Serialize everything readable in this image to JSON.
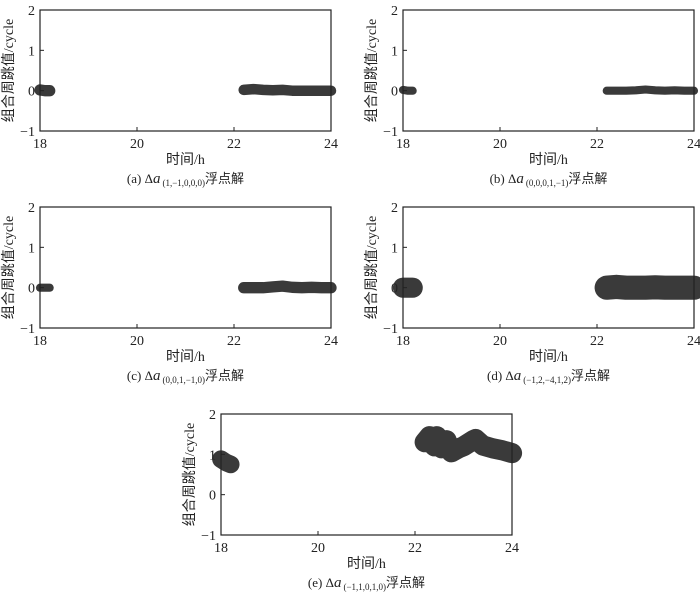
{
  "chart_data": [
    {
      "type": "scatter",
      "panel": "a",
      "title": "",
      "xlabel": "时间/h",
      "ylabel": "组合周跳值/cycle",
      "xlim": [
        18,
        24
      ],
      "ylim": [
        -1,
        2
      ],
      "xticks": [
        "18",
        "20",
        "22",
        "24"
      ],
      "yticks": [
        "−1",
        "0",
        "1",
        "2"
      ],
      "caption": {
        "prefix": "(a) Δ",
        "var": "a",
        "sub": "(1,−1,0,0,0)",
        "suffix": "浮点解"
      },
      "segments": [
        {
          "x": [
            18.0,
            18.1,
            18.2
          ],
          "y": [
            0.02,
            0.0,
            0.0
          ],
          "spread": 0.14
        },
        {
          "x": [
            22.2,
            22.4,
            22.6,
            22.8,
            23.0,
            23.2,
            23.4,
            23.6,
            23.8,
            24.0
          ],
          "y": [
            0.02,
            0.04,
            0.02,
            0.01,
            0.02,
            0.0,
            0.0,
            0.0,
            0.0,
            0.0
          ],
          "spread": 0.13
        }
      ],
      "color": "#3a3a3a"
    },
    {
      "type": "scatter",
      "panel": "b",
      "xlabel": "时间/h",
      "ylabel": "组合周跳值/cycle",
      "xlim": [
        18,
        24
      ],
      "ylim": [
        -1,
        2
      ],
      "xticks": [
        "18",
        "20",
        "22",
        "24"
      ],
      "yticks": [
        "−1",
        "0",
        "1",
        "2"
      ],
      "caption": {
        "prefix": "(b) Δ",
        "var": "a",
        "sub": "(0,0,0,1,−1)",
        "suffix": "浮点解"
      },
      "segments": [
        {
          "x": [
            18.0,
            18.1,
            18.2
          ],
          "y": [
            0.02,
            0.0,
            0.0
          ],
          "spread": 0.1
        },
        {
          "x": [
            22.2,
            22.4,
            22.6,
            22.8,
            23.0,
            23.2,
            23.4,
            23.6,
            23.8,
            24.0
          ],
          "y": [
            0.0,
            0.0,
            0.0,
            0.01,
            0.03,
            0.01,
            0.0,
            0.01,
            0.0,
            0.0
          ],
          "spread": 0.1
        }
      ],
      "color": "#3a3a3a"
    },
    {
      "type": "scatter",
      "panel": "c",
      "xlabel": "时间/h",
      "ylabel": "组合周跳值/cycle",
      "xlim": [
        18,
        24
      ],
      "ylim": [
        -1,
        2
      ],
      "xticks": [
        "18",
        "20",
        "22",
        "24"
      ],
      "yticks": [
        "−1",
        "0",
        "1",
        "2"
      ],
      "caption": {
        "prefix": "(c) Δ",
        "var": "a",
        "sub": "(0,0,1,−1,0)",
        "suffix": "浮点解"
      },
      "segments": [
        {
          "x": [
            18.0,
            18.1,
            18.2
          ],
          "y": [
            0.0,
            0.0,
            0.0
          ],
          "spread": 0.1
        },
        {
          "x": [
            22.2,
            22.4,
            22.6,
            22.8,
            23.0,
            23.2,
            23.4,
            23.6,
            23.8,
            24.0
          ],
          "y": [
            0.0,
            0.0,
            0.0,
            0.02,
            0.04,
            0.01,
            0.0,
            0.01,
            0.0,
            0.0
          ],
          "spread": 0.14
        }
      ],
      "color": "#3a3a3a"
    },
    {
      "type": "scatter",
      "panel": "d",
      "xlabel": "时间/h",
      "ylabel": "组合周跳值/cycle",
      "xlim": [
        18,
        24
      ],
      "ylim": [
        -1,
        2
      ],
      "xticks": [
        "18",
        "20",
        "22",
        "24"
      ],
      "yticks": [
        "−1",
        "0",
        "1",
        "2"
      ],
      "caption": {
        "prefix": "(d) Δ",
        "var": "a",
        "sub": "(−1,2,−4,1,2)",
        "suffix": "浮点解"
      },
      "segments": [
        {
          "x": [
            18.0,
            18.1,
            18.2
          ],
          "y": [
            0.0,
            0.0,
            0.0
          ],
          "spread": 0.25
        },
        {
          "x": [
            22.2,
            22.4,
            22.6,
            22.8,
            23.0,
            23.2,
            23.4,
            23.6,
            23.8,
            24.0
          ],
          "y": [
            0.0,
            0.02,
            0.0,
            0.0,
            0.0,
            0.01,
            0.0,
            0.0,
            0.0,
            0.0
          ],
          "spread": 0.3
        }
      ],
      "color": "#3a3a3a"
    },
    {
      "type": "scatter",
      "panel": "e",
      "xlabel": "时间/h",
      "ylabel": "组合周跳值/cycle",
      "xlim": [
        18,
        24
      ],
      "ylim": [
        -1,
        2
      ],
      "xticks": [
        "18",
        "20",
        "22",
        "24"
      ],
      "yticks": [
        "−1",
        "0",
        "1",
        "2"
      ],
      "caption": {
        "prefix": "(e) Δ",
        "var": "a",
        "sub": "(−1,1,0,1,0)",
        "suffix": "浮点解"
      },
      "segments": [
        {
          "x": [
            18.0,
            18.1,
            18.2
          ],
          "y": [
            0.88,
            0.8,
            0.75
          ],
          "spread": 0.22
        },
        {
          "x": [
            22.2,
            22.3,
            22.4,
            22.45,
            22.55,
            22.65,
            22.75,
            22.9,
            23.0,
            23.2,
            23.25,
            23.4,
            23.6,
            23.8,
            24.0
          ],
          "y": [
            1.3,
            1.45,
            1.2,
            1.45,
            1.15,
            1.35,
            1.05,
            1.15,
            1.2,
            1.35,
            1.38,
            1.22,
            1.15,
            1.1,
            1.03
          ],
          "spread": 0.25
        }
      ],
      "color": "#3a3a3a"
    }
  ]
}
